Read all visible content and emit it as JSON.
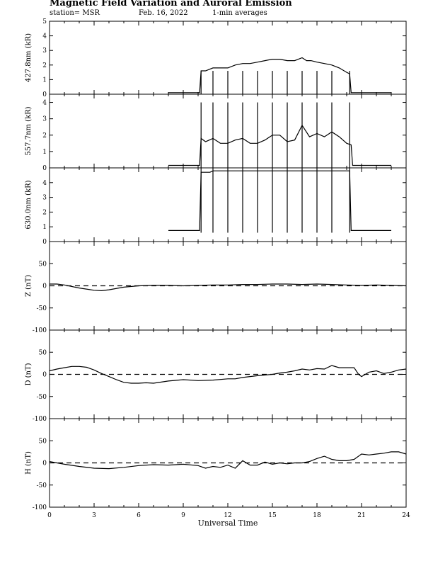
{
  "header": {
    "title": "Magnetic Field Variation and Auroral Emission",
    "station": "station= MSR",
    "date": "Feb. 16, 2022",
    "averaging": "1-min averages"
  },
  "chart_data": [
    {
      "type": "line",
      "ylabel": "427.8nm (kR)",
      "ylim": [
        0,
        5
      ],
      "yticks": [
        "0",
        "1",
        "2",
        "3",
        "4",
        "5"
      ],
      "xlim": [
        0,
        24
      ],
      "series": [
        {
          "x": [
            8,
            8.5,
            9,
            9.5,
            10.1,
            10.2,
            10.5,
            11,
            11.5,
            12,
            12.5,
            13,
            13.5,
            14,
            14.5,
            15,
            15.5,
            16,
            16.5,
            17,
            17.3,
            17.6,
            18,
            18.5,
            19,
            19.5,
            20,
            20.2,
            20.3,
            21,
            22,
            23
          ],
          "y": [
            0.1,
            0.1,
            0.1,
            0.1,
            0.1,
            1.6,
            1.6,
            1.8,
            1.8,
            1.8,
            2.0,
            2.1,
            2.1,
            2.2,
            2.3,
            2.4,
            2.4,
            2.3,
            2.3,
            2.5,
            2.3,
            2.3,
            2.2,
            2.1,
            2.0,
            1.8,
            1.5,
            1.4,
            0.1,
            0.1,
            0.1,
            0.1
          ]
        }
      ],
      "spikes": {
        "x": [
          10.2,
          11,
          12,
          13,
          14,
          15,
          16,
          17,
          18,
          19,
          20.2
        ],
        "y1": 0,
        "y2": 1.6
      }
    },
    {
      "type": "line",
      "ylabel": "557.7nm (kR)",
      "ylim": [
        0,
        4.5
      ],
      "yticks": [
        "0",
        "1",
        "2",
        "3",
        "4"
      ],
      "xlim": [
        0,
        24
      ],
      "series": [
        {
          "x": [
            8,
            9,
            10,
            10.1,
            10.2,
            10.5,
            11,
            11.5,
            12,
            12.5,
            13,
            13.5,
            14,
            14.5,
            15,
            15.5,
            16,
            16.5,
            17,
            17.5,
            18,
            18.5,
            19,
            19.5,
            20,
            20.3,
            20.4,
            21,
            22,
            23
          ],
          "y": [
            0.15,
            0.15,
            0.15,
            0.15,
            1.8,
            1.6,
            1.8,
            1.5,
            1.5,
            1.7,
            1.8,
            1.5,
            1.5,
            1.7,
            2.0,
            2.0,
            1.6,
            1.7,
            2.6,
            1.9,
            2.1,
            1.9,
            2.2,
            1.9,
            1.5,
            1.4,
            0.15,
            0.15,
            0.15,
            0.15
          ]
        }
      ],
      "spikes": {
        "x": [
          10.2,
          11,
          12,
          13,
          14,
          15,
          16,
          17,
          18,
          19,
          20.2
        ],
        "y1": 0,
        "y2": 4.0
      }
    },
    {
      "type": "line",
      "ylabel": "630.0nm (kR)",
      "ylim": [
        0,
        5
      ],
      "yticks": [
        "0",
        "1",
        "2",
        "3",
        "4"
      ],
      "xlim": [
        0,
        24
      ],
      "series": [
        {
          "x": [
            8,
            9,
            10,
            10.1,
            10.2,
            10.8,
            11,
            12,
            13,
            14,
            20.2,
            20.3,
            21,
            22,
            23
          ],
          "y": [
            0.75,
            0.75,
            0.75,
            0.75,
            4.7,
            4.7,
            4.8,
            4.8,
            4.8,
            4.8,
            4.8,
            0.75,
            0.75,
            0.75,
            0.75
          ]
        }
      ],
      "spikes": {
        "x": [
          10.2,
          11,
          12,
          13,
          14,
          15,
          16,
          17,
          18,
          19,
          20.2
        ],
        "y1": 0.6,
        "y2": 5.0
      }
    },
    {
      "type": "line",
      "ylabel": "Z (nT)",
      "ylim": [
        -100,
        100
      ],
      "yticks": [
        "-100",
        "-50",
        "0",
        "50"
      ],
      "xlim": [
        0,
        24
      ],
      "baseline": 0,
      "series": [
        {
          "x": [
            0,
            0.5,
            1,
            2,
            3,
            3.5,
            4,
            5,
            6,
            7,
            8,
            9,
            10,
            11,
            12,
            13,
            14,
            15,
            16,
            17,
            18,
            19,
            20,
            21,
            22,
            23,
            24
          ],
          "y": [
            4,
            4,
            2,
            -5,
            -10,
            -11,
            -9,
            -3,
            0,
            1,
            1,
            0,
            1,
            2,
            2,
            3,
            3,
            4,
            4,
            3,
            4,
            3,
            2,
            1,
            2,
            1,
            0
          ]
        }
      ]
    },
    {
      "type": "line",
      "ylabel": "D (nT)",
      "ylim": [
        -100,
        100
      ],
      "yticks": [
        "-100",
        "-50",
        "0",
        "50"
      ],
      "xlim": [
        0,
        24
      ],
      "baseline": 0,
      "series": [
        {
          "x": [
            0,
            0.5,
            1,
            1.5,
            2,
            2.5,
            3,
            3.5,
            4,
            4.5,
            5,
            5.5,
            6,
            6.5,
            7,
            8,
            9,
            10,
            11,
            12,
            12.5,
            13,
            14,
            15,
            15.5,
            16,
            16.5,
            17,
            17.5,
            18,
            18.5,
            19,
            19.5,
            20,
            20.5,
            20.8,
            21,
            21.5,
            22,
            22.5,
            23,
            23.5,
            24
          ],
          "y": [
            8,
            12,
            15,
            18,
            18,
            16,
            10,
            2,
            -5,
            -12,
            -18,
            -20,
            -20,
            -19,
            -20,
            -15,
            -12,
            -14,
            -13,
            -10,
            -10,
            -7,
            -3,
            0,
            3,
            5,
            8,
            12,
            10,
            13,
            12,
            20,
            15,
            15,
            15,
            0,
            -5,
            5,
            8,
            2,
            5,
            10,
            12
          ]
        }
      ]
    },
    {
      "type": "line",
      "ylabel": "H (nT)",
      "ylim": [
        -100,
        100
      ],
      "yticks": [
        "-100",
        "-50",
        "0",
        "50"
      ],
      "xlim": [
        0,
        24
      ],
      "baseline": 0,
      "series": [
        {
          "x": [
            0,
            0.5,
            1,
            2,
            3,
            4,
            5,
            6,
            7,
            8,
            9,
            10,
            10.5,
            11,
            11.5,
            12,
            12.5,
            13,
            13.5,
            14,
            14.5,
            15,
            15.5,
            16,
            16.5,
            17,
            17.5,
            18,
            18.5,
            19,
            19.5,
            20,
            20.5,
            21,
            21.5,
            22,
            22.5,
            23,
            23.5,
            24
          ],
          "y": [
            3,
            0,
            -3,
            -8,
            -12,
            -13,
            -10,
            -6,
            -4,
            -5,
            -3,
            -6,
            -12,
            -8,
            -10,
            -5,
            -12,
            5,
            -5,
            -5,
            2,
            -3,
            0,
            -2,
            0,
            0,
            3,
            10,
            15,
            8,
            5,
            5,
            8,
            20,
            18,
            20,
            22,
            25,
            25,
            20
          ]
        }
      ]
    }
  ],
  "x_axis": {
    "ticks": [
      "0",
      "3",
      "6",
      "9",
      "12",
      "15",
      "18",
      "21",
      "24"
    ],
    "label": "Universal Time"
  }
}
